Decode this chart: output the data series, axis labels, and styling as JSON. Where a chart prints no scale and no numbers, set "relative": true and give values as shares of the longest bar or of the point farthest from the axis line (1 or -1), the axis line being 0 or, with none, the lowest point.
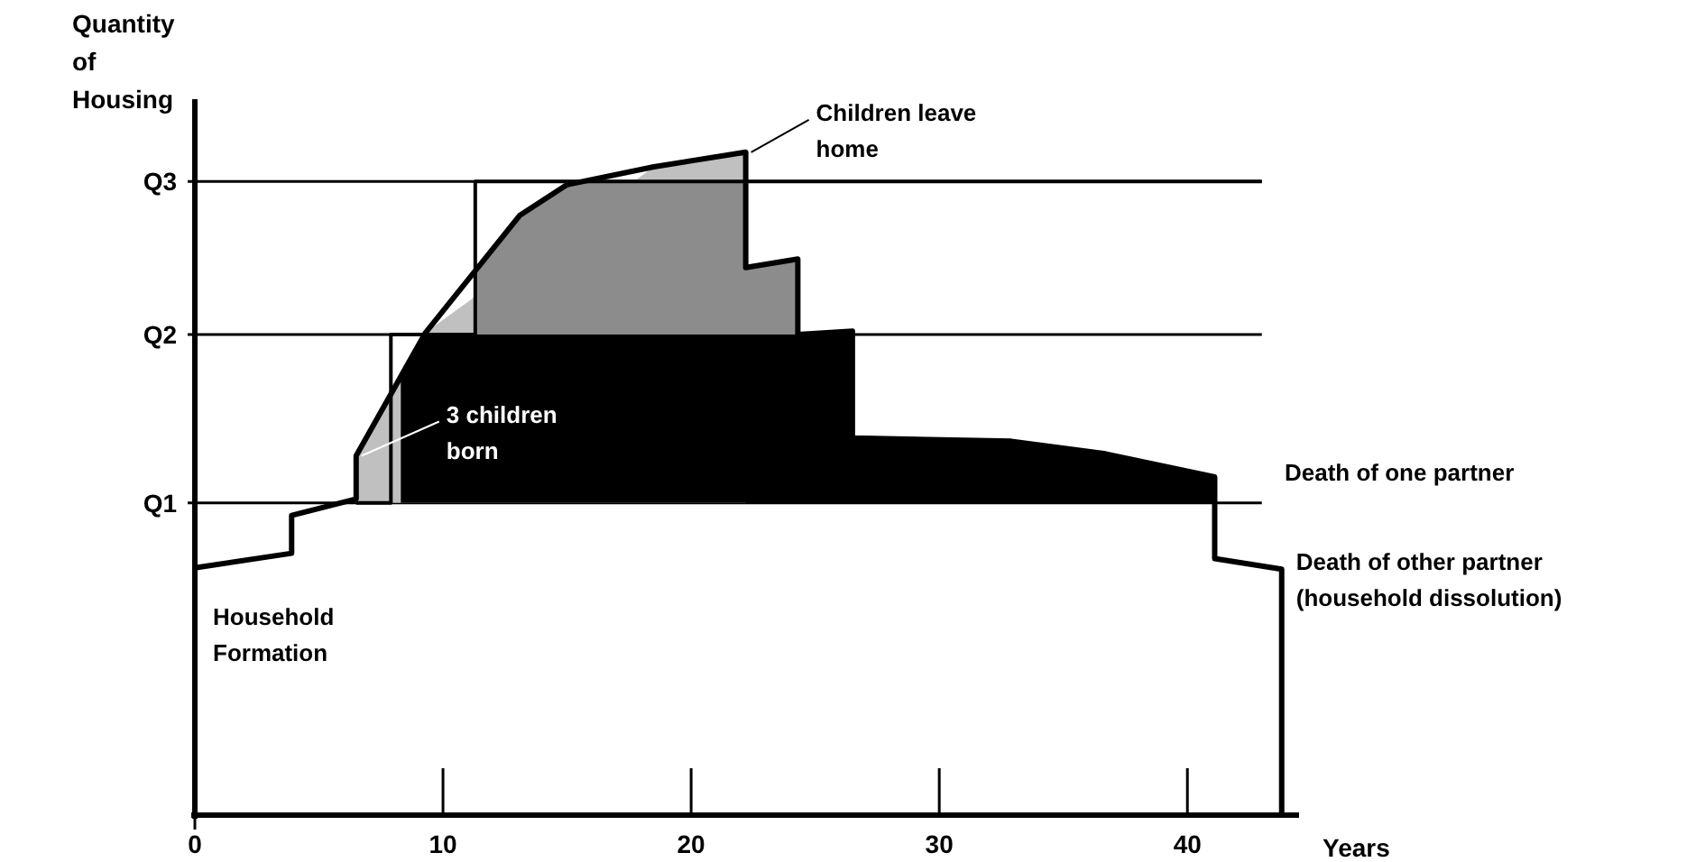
{
  "chart_data": {
    "type": "line",
    "relative": true,
    "ylabel": "Quantity of Housing",
    "xlabel": "Years",
    "xlim": [
      0,
      44.5
    ],
    "xticks": [
      0,
      10,
      20,
      30,
      40
    ],
    "ref_lines": [
      {
        "axis": "y",
        "value": 0.471,
        "label": "Q1",
        "color": "#000000"
      },
      {
        "axis": "y",
        "value": 0.725,
        "label": "Q2",
        "color": "#000000"
      },
      {
        "axis": "y",
        "value": 0.956,
        "label": "Q3",
        "color": "#000000"
      }
    ],
    "series": [
      {
        "type": "area",
        "color": "#c0c0c0",
        "x": [
          6.5,
          6.5,
          9.3,
          18.5,
          22.2
        ],
        "values": [
          0.471,
          0.542,
          0.728,
          0.978,
          1
        ]
      },
      {
        "type": "area",
        "color": "#8c8c8c",
        "x": [
          11.3,
          13.1,
          15,
          15.3,
          22.2,
          22.2,
          24.3
        ],
        "values": [
          0.821,
          0.905,
          0.951,
          0.956,
          0.956,
          0.826,
          0.839
        ]
      },
      {
        "type": "area",
        "color": "#000000",
        "x": [
          8.3,
          9.3,
          24.3,
          26.5,
          26.5,
          32.9,
          36.7,
          41.1
        ],
        "values": [
          0.666,
          0.725,
          0.725,
          0.73,
          0.569,
          0.564,
          0.545,
          0.51
        ]
      },
      {
        "color": "#000000",
        "x": [
          6.5,
          7.9,
          7.9,
          11.3,
          11.3,
          43
        ],
        "values": [
          0.471,
          0.471,
          0.725,
          0.725,
          0.956,
          0.956
        ]
      },
      {
        "color": "#000000",
        "x": [
          0,
          3.9,
          3.9,
          6.5,
          6.5,
          9.3,
          13.1,
          15,
          18.5,
          22.2,
          22.2,
          24.3,
          24.3,
          26.5,
          26.5,
          32.9,
          36.7,
          41.1,
          41.1,
          43.8,
          43.8
        ],
        "values": [
          0.373,
          0.395,
          0.452,
          0.477,
          0.542,
          0.728,
          0.905,
          0.951,
          0.978,
          1,
          0.826,
          0.839,
          0.725,
          0.73,
          0.569,
          0.564,
          0.545,
          0.51,
          0.387,
          0.371,
          0
        ]
      }
    ],
    "annotations": [
      {
        "text": "Children leave home",
        "x": 22.2,
        "y": 1
      },
      {
        "text": "3 children born",
        "x": 6.5,
        "y": 0.542
      },
      {
        "text": "Household Formation",
        "x": 0,
        "y": 0.373
      },
      "Death of one partner",
      {
        "text": "Death of other partner (household dissolution)",
        "x": 43.8,
        "y": 0.371
      }
    ]
  }
}
